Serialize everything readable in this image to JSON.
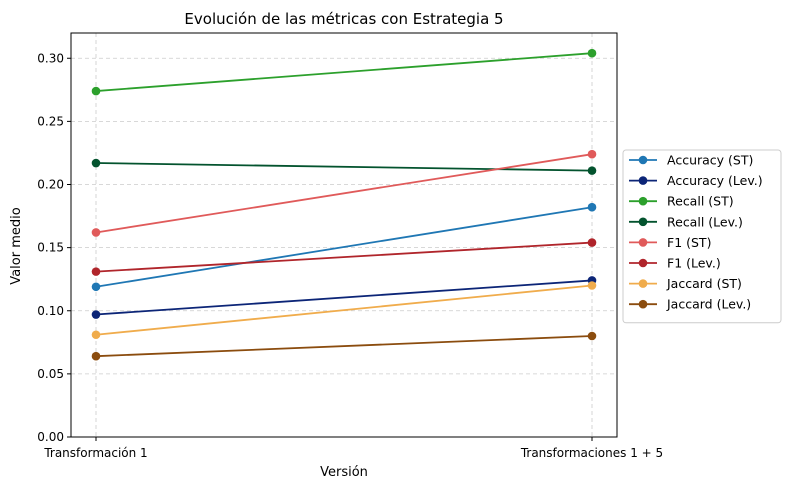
{
  "chart_data": {
    "type": "line",
    "title": "Evolución de las métricas con Estrategia 5",
    "xlabel": "Versión",
    "ylabel": "Valor medio",
    "categories": [
      "Transformación 1",
      "Transformaciones 1 + 5"
    ],
    "ylim": [
      0,
      0.32
    ],
    "yticks": [
      0.0,
      0.05,
      0.1,
      0.15,
      0.2,
      0.25,
      0.3
    ],
    "ytick_labels": [
      "0.00",
      "0.05",
      "0.10",
      "0.15",
      "0.20",
      "0.25",
      "0.30"
    ],
    "grid": true,
    "legend_position": "right-center-outside",
    "series": [
      {
        "name": "Accuracy (ST)",
        "values": [
          0.119,
          0.182
        ],
        "color": "#1f77b4"
      },
      {
        "name": "Accuracy (Lev.)",
        "values": [
          0.097,
          0.124
        ],
        "color": "#0c2577"
      },
      {
        "name": "Recall (ST)",
        "values": [
          0.274,
          0.304
        ],
        "color": "#2ca02c"
      },
      {
        "name": "Recall (Lev.)",
        "values": [
          0.217,
          0.211
        ],
        "color": "#03532e"
      },
      {
        "name": "F1 (ST)",
        "values": [
          0.162,
          0.224
        ],
        "color": "#e05a5a"
      },
      {
        "name": "F1 (Lev.)",
        "values": [
          0.131,
          0.154
        ],
        "color": "#b0252b"
      },
      {
        "name": "Jaccard (ST)",
        "values": [
          0.081,
          0.12
        ],
        "color": "#f0ac4c"
      },
      {
        "name": "Jaccard (Lev.)",
        "values": [
          0.064,
          0.08
        ],
        "color": "#8b4c0e"
      }
    ]
  }
}
